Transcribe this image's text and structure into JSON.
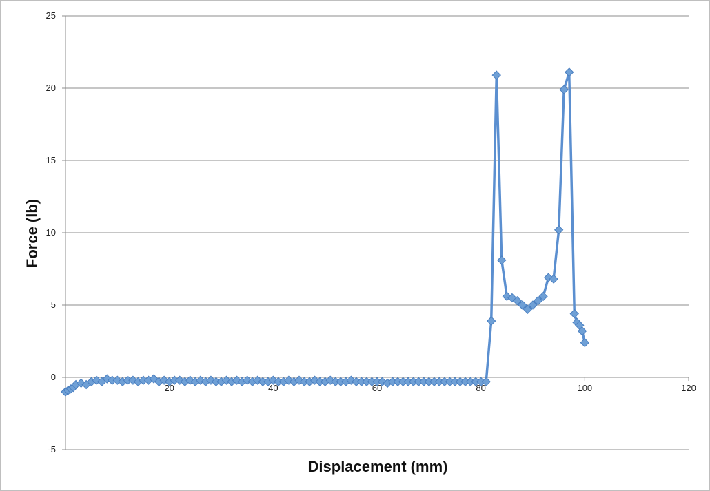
{
  "chart_data": {
    "type": "scatter",
    "title": "",
    "xlabel": "Displacement (mm)",
    "ylabel": "Force (lb)",
    "xlim": [
      0,
      120
    ],
    "ylim": [
      -5,
      25
    ],
    "x_ticks": [
      20,
      40,
      60,
      80,
      100,
      120
    ],
    "y_ticks": [
      -5,
      0,
      5,
      10,
      15,
      20,
      25
    ],
    "x_tick_labels": [
      "20",
      "40",
      "60",
      "80",
      "100",
      "120"
    ],
    "y_tick_labels": [
      "-5",
      "0",
      "5",
      "10",
      "15",
      "20",
      "25"
    ],
    "grid": "horizontal",
    "legend": "none",
    "series_color": "#6fa0d6",
    "line_color": "#5b8fd0",
    "marker_edge": "#4a7fc0",
    "series": [
      {
        "name": "",
        "x": [
          0,
          0.5,
          1,
          1.5,
          2,
          3,
          4,
          5,
          6,
          7,
          8,
          9,
          10,
          11,
          12,
          13,
          14,
          15,
          16,
          17,
          18,
          19,
          20,
          21,
          22,
          23,
          24,
          25,
          26,
          27,
          28,
          29,
          30,
          31,
          32,
          33,
          34,
          35,
          36,
          37,
          38,
          39,
          40,
          41,
          42,
          43,
          44,
          45,
          46,
          47,
          48,
          49,
          50,
          51,
          52,
          53,
          54,
          55,
          56,
          57,
          58,
          59,
          60,
          61,
          62,
          63,
          64,
          65,
          66,
          67,
          68,
          69,
          70,
          71,
          72,
          73,
          74,
          75,
          76,
          77,
          78,
          79,
          80,
          81,
          82,
          83,
          84,
          85,
          86,
          87,
          88,
          89,
          90,
          91,
          92,
          93,
          94,
          95,
          96,
          97,
          98,
          98.5,
          99,
          99.5,
          100
        ],
        "y": [
          -1,
          -0.9,
          -0.8,
          -0.7,
          -0.5,
          -0.4,
          -0.5,
          -0.3,
          -0.2,
          -0.3,
          -0.1,
          -0.2,
          -0.2,
          -0.3,
          -0.2,
          -0.2,
          -0.3,
          -0.2,
          -0.2,
          -0.1,
          -0.3,
          -0.2,
          -0.3,
          -0.2,
          -0.2,
          -0.3,
          -0.2,
          -0.3,
          -0.2,
          -0.3,
          -0.2,
          -0.3,
          -0.3,
          -0.2,
          -0.3,
          -0.2,
          -0.3,
          -0.2,
          -0.3,
          -0.2,
          -0.3,
          -0.3,
          -0.2,
          -0.3,
          -0.3,
          -0.2,
          -0.3,
          -0.2,
          -0.3,
          -0.3,
          -0.2,
          -0.3,
          -0.3,
          -0.2,
          -0.3,
          -0.3,
          -0.3,
          -0.2,
          -0.3,
          -0.3,
          -0.3,
          -0.3,
          -0.3,
          -0.3,
          -0.4,
          -0.3,
          -0.3,
          -0.3,
          -0.3,
          -0.3,
          -0.3,
          -0.3,
          -0.3,
          -0.3,
          -0.3,
          -0.3,
          -0.3,
          -0.3,
          -0.3,
          -0.3,
          -0.3,
          -0.3,
          -0.3,
          -0.3,
          3.9,
          20.9,
          8.1,
          5.6,
          5.5,
          5.3,
          5.0,
          4.7,
          5.0,
          5.3,
          5.6,
          6.9,
          6.8,
          10.2,
          19.9,
          21.1,
          4.4,
          3.8,
          3.6,
          3.2,
          2.4
        ]
      }
    ]
  }
}
